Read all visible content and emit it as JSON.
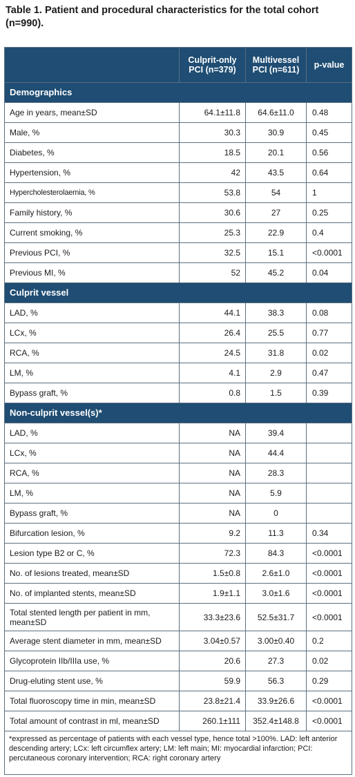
{
  "title": "Table 1. Patient and procedural characteristics for the total cohort (n=990).",
  "columns": {
    "c1": "Culprit-only PCI (n=379)",
    "c2": "Multivessel PCI (n=611)",
    "c3_italic": "p",
    "c3_rest": "-value"
  },
  "sections": {
    "demographics": "Demographics",
    "culprit": "Culprit vessel",
    "nonculprit": "Non-culprit vessel(s)*"
  },
  "rows": [
    {
      "label": "Age in years, mean±SD",
      "c1": "64.1±11.8",
      "c2": "64.6±11.0",
      "p": "0.48"
    },
    {
      "label": "Male, %",
      "c1": "30.3",
      "c2": "30.9",
      "p": "0.45"
    },
    {
      "label": "Diabetes, %",
      "c1": "18.5",
      "c2": "20.1",
      "p": "0.56"
    },
    {
      "label": "Hypertension, %",
      "c1": "42",
      "c2": "43.5",
      "p": "0.64"
    },
    {
      "label": "Hypercholesterolaemia, %",
      "c1": "53.8",
      "c2": "54",
      "p": "1"
    },
    {
      "label": "Family history, %",
      "c1": "30.6",
      "c2": "27",
      "p": "0.25"
    },
    {
      "label": "Current smoking, %",
      "c1": "25.3",
      "c2": "22.9",
      "p": "0.4"
    },
    {
      "label": "Previous PCI, %",
      "c1": "32.5",
      "c2": "15.1",
      "p": "<0.0001"
    },
    {
      "label": "Previous MI, %",
      "c1": "52",
      "c2": "45.2",
      "p": "0.04"
    },
    {
      "label": "LAD, %",
      "c1": "44.1",
      "c2": "38.3",
      "p": "0.08"
    },
    {
      "label": "LCx, %",
      "c1": "26.4",
      "c2": "25.5",
      "p": "0.77"
    },
    {
      "label": "RCA, %",
      "c1": "24.5",
      "c2": "31.8",
      "p": "0.02"
    },
    {
      "label": "LM, %",
      "c1": "4.1",
      "c2": "2.9",
      "p": "0.47"
    },
    {
      "label": "Bypass graft, %",
      "c1": "0.8",
      "c2": "1.5",
      "p": "0.39"
    },
    {
      "label": "LAD, %",
      "c1": "NA",
      "c2": "39.4",
      "p": ""
    },
    {
      "label": "LCx, %",
      "c1": "NA",
      "c2": "44.4",
      "p": ""
    },
    {
      "label": "RCA, %",
      "c1": "NA",
      "c2": "28.3",
      "p": ""
    },
    {
      "label": "LM, %",
      "c1": "NA",
      "c2": "5.9",
      "p": ""
    },
    {
      "label": "Bypass graft, %",
      "c1": "NA",
      "c2": "0",
      "p": ""
    },
    {
      "label": "Bifurcation lesion, %",
      "c1": "9.2",
      "c2": "11.3",
      "p": "0.34"
    },
    {
      "label": "Lesion type B2 or C, %",
      "c1": "72.3",
      "c2": "84.3",
      "p": "<0.0001"
    },
    {
      "label": "No. of lesions treated, mean±SD",
      "c1": "1.5±0.8",
      "c2": "2.6±1.0",
      "p": "<0.0001"
    },
    {
      "label": "No. of implanted stents, mean±SD",
      "c1": "1.9±1.1",
      "c2": "3.0±1.6",
      "p": "<0.0001"
    },
    {
      "label": "Total stented length per patient in mm, mean±SD",
      "c1": "33.3±23.6",
      "c2": "52.5±31.7",
      "p": "<0.0001"
    },
    {
      "label": "Average stent diameter in mm, mean±SD",
      "c1": "3.04±0.57",
      "c2": "3.00±0.40",
      "p": "0.2"
    },
    {
      "label": "Glycoprotein IIb/IIIa use, %",
      "c1": "20.6",
      "c2": "27.3",
      "p": "0.02"
    },
    {
      "label": "Drug-eluting stent use, %",
      "c1": "59.9",
      "c2": "56.3",
      "p": "0.29"
    },
    {
      "label": "Total fluoroscopy time in min, mean±SD",
      "c1": "23.8±21.4",
      "c2": "33.9±26.6",
      "p": "<0.0001"
    },
    {
      "label": "Total amount of contrast in ml, mean±SD",
      "c1": "260.1±111",
      "c2": "352.4±148.8",
      "p": "<0.0001"
    }
  ],
  "footnote": "*expressed as percentage of patients with each vessel type, hence total >100%. LAD: left anterior descending artery; LCx: left circumflex artery; LM: left main; MI: myocardial infarction; PCI: percutaneous coronary intervention; RCA: right coronary artery"
}
